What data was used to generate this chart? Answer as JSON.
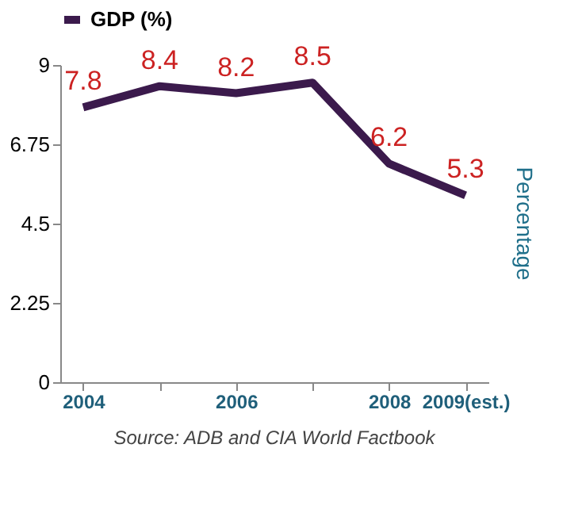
{
  "chart_data": {
    "type": "line",
    "categories": [
      "2004",
      null,
      "2006",
      null,
      "2008",
      "2009(est.)"
    ],
    "series": [
      {
        "name": "GDP (%)",
        "color": "#3b1a4c",
        "values": [
          7.8,
          8.4,
          8.2,
          8.5,
          6.2,
          5.3
        ]
      }
    ],
    "ylim": [
      0,
      9
    ],
    "yticks": [
      0,
      2.25,
      4.5,
      6.75,
      9
    ],
    "ylabel": "Percentage",
    "data_labels": true,
    "legend": "top",
    "grid": false,
    "marker": "none",
    "line_style": "solid",
    "annotations": [
      "Source: ADB and CIA World Factbook"
    ]
  }
}
